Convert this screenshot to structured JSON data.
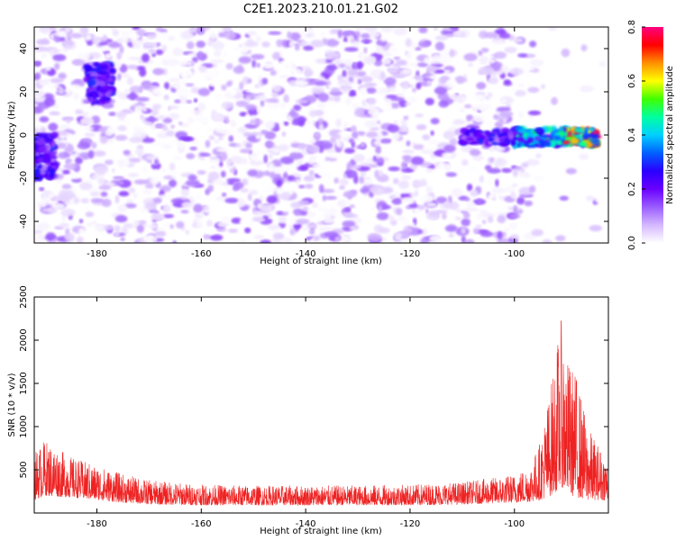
{
  "figure": {
    "title": "C2E1.2023.210.01.21.G02"
  },
  "chart_data": [
    {
      "type": "heatmap",
      "xlabel": "Height of straight line (km)",
      "ylabel": "Frequency (Hz)",
      "xlim": [
        -192,
        -82
      ],
      "ylim": [
        -50,
        50
      ],
      "xticks": [
        -180,
        -160,
        -140,
        -120,
        -100
      ],
      "yticks": [
        -40,
        -20,
        0,
        20,
        40
      ],
      "colorbar": {
        "label": "Normalized spectral amplitude",
        "range": [
          0,
          0.8
        ],
        "ticks": [
          "0.0",
          "0.2",
          "0.4",
          "0.6",
          "0.8"
        ],
        "colormap": [
          "#ffffff",
          "#d4b8ff",
          "#9a5cff",
          "#6a00ff",
          "#2a00ff",
          "#0060ff",
          "#00d0ff",
          "#00ffa0",
          "#40ff00",
          "#ffff00",
          "#ff9000",
          "#ff0000",
          "#ff0080"
        ]
      },
      "features": [
        {
          "x": [
            -91,
            -84
          ],
          "y": [
            -5,
            3
          ],
          "amplitude": 0.8
        },
        {
          "x": [
            -100,
            -91
          ],
          "y": [
            -5,
            3
          ],
          "amplitude": 0.5
        },
        {
          "x": [
            -110,
            -100
          ],
          "y": [
            -4,
            2
          ],
          "amplitude": 0.3
        },
        {
          "x": [
            -182,
            -177
          ],
          "y": [
            15,
            33
          ],
          "amplitude": 0.3
        },
        {
          "x": [
            -192,
            -188
          ],
          "y": [
            -20,
            0
          ],
          "amplitude": 0.3
        }
      ]
    },
    {
      "type": "line",
      "xlabel": "Height of straight line (km)",
      "ylabel": "SNR (10 * v/v)",
      "xlim": [
        -192,
        -82
      ],
      "ylim": [
        0,
        2500
      ],
      "xticks": [
        -180,
        -160,
        -140,
        -120,
        -100
      ],
      "yticks": [
        500,
        1000,
        1500,
        2000,
        2500
      ],
      "series_color": "#ee2222",
      "envelope": {
        "x": [
          -192,
          -190,
          -185,
          -180,
          -175,
          -170,
          -160,
          -150,
          -140,
          -130,
          -120,
          -110,
          -105,
          -100,
          -97,
          -95,
          -93,
          -92,
          -91,
          -90,
          -89,
          -88,
          -86,
          -84,
          -82
        ],
        "y": [
          700,
          850,
          650,
          550,
          450,
          380,
          330,
          320,
          320,
          320,
          330,
          360,
          400,
          450,
          550,
          850,
          1500,
          1900,
          2250,
          1800,
          1700,
          1600,
          1000,
          800,
          600
        ],
        "baseline": [
          150,
          200,
          180,
          150,
          120,
          100,
          90,
          90,
          90,
          90,
          90,
          100,
          110,
          120,
          130,
          150,
          200,
          250,
          300,
          250,
          200,
          180,
          150,
          150,
          150
        ]
      }
    }
  ]
}
